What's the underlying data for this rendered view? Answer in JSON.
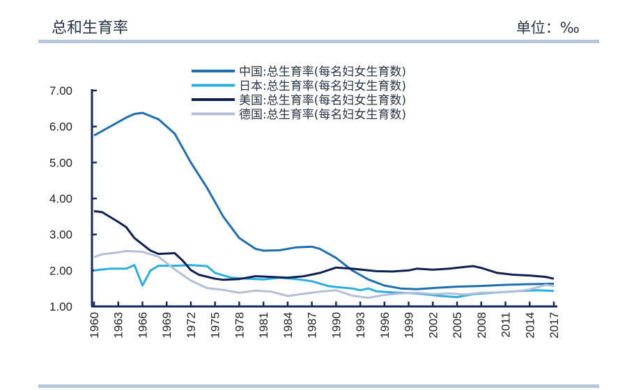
{
  "header": {
    "title": "总和生育率",
    "unit": "单位：‰"
  },
  "chart_data": {
    "type": "line",
    "title": "总和生育率",
    "xlabel": "",
    "ylabel": "",
    "ylim": [
      1,
      7
    ],
    "xlim": [
      1960,
      2017
    ],
    "yticks": [
      "1.00",
      "2.00",
      "3.00",
      "4.00",
      "5.00",
      "6.00",
      "7.00"
    ],
    "xticks": [
      "1960",
      "1963",
      "1966",
      "1969",
      "1972",
      "1975",
      "1978",
      "1981",
      "1984",
      "1987",
      "1990",
      "1993",
      "1996",
      "1999",
      "2002",
      "2005",
      "2008",
      "2011",
      "2014",
      "2017"
    ],
    "grid": false,
    "legend_position": "top",
    "series": [
      {
        "name": "中国:总生育率(每名妇女生育数)",
        "color": "#1f6fad",
        "x": [
          1960,
          1962,
          1964,
          1965,
          1966,
          1968,
          1970,
          1972,
          1974,
          1976,
          1978,
          1980,
          1981,
          1983,
          1985,
          1987,
          1988,
          1990,
          1992,
          1994,
          1996,
          1998,
          2000,
          2002,
          2005,
          2008,
          2011,
          2014,
          2017
        ],
        "y": [
          5.75,
          6.0,
          6.25,
          6.35,
          6.38,
          6.2,
          5.8,
          5.0,
          4.3,
          3.5,
          2.9,
          2.6,
          2.55,
          2.56,
          2.64,
          2.66,
          2.6,
          2.35,
          2.0,
          1.75,
          1.58,
          1.5,
          1.48,
          1.51,
          1.55,
          1.57,
          1.6,
          1.62,
          1.63
        ]
      },
      {
        "name": "日本:总生育率(每名妇女生育数)",
        "color": "#2aaee0",
        "x": [
          1960,
          1962,
          1964,
          1965,
          1966,
          1967,
          1968,
          1970,
          1972,
          1974,
          1975,
          1977,
          1979,
          1981,
          1983,
          1985,
          1987,
          1989,
          1990,
          1992,
          1993,
          1994,
          1995,
          1997,
          2000,
          2003,
          2005,
          2007,
          2010,
          2013,
          2015,
          2017
        ],
        "y": [
          2.0,
          2.05,
          2.05,
          2.15,
          1.58,
          2.0,
          2.13,
          2.13,
          2.15,
          2.12,
          1.93,
          1.8,
          1.77,
          1.75,
          1.8,
          1.76,
          1.7,
          1.57,
          1.54,
          1.5,
          1.45,
          1.5,
          1.42,
          1.39,
          1.36,
          1.29,
          1.26,
          1.34,
          1.39,
          1.43,
          1.45,
          1.43
        ]
      },
      {
        "name": "美国:总生育率(每名妇女生育数)",
        "color": "#0f1f4f",
        "x": [
          1960,
          1961,
          1963,
          1964,
          1965,
          1967,
          1968,
          1970,
          1971,
          1972,
          1973,
          1975,
          1976,
          1978,
          1980,
          1982,
          1984,
          1986,
          1988,
          1990,
          1992,
          1995,
          1997,
          1999,
          2000,
          2002,
          2004,
          2006,
          2007,
          2008,
          2010,
          2012,
          2014,
          2016,
          2017
        ],
        "y": [
          3.65,
          3.62,
          3.35,
          3.2,
          2.9,
          2.55,
          2.46,
          2.48,
          2.27,
          2.01,
          1.88,
          1.77,
          1.74,
          1.76,
          1.84,
          1.82,
          1.8,
          1.84,
          1.93,
          2.08,
          2.05,
          1.98,
          1.97,
          2.0,
          2.05,
          2.02,
          2.05,
          2.1,
          2.12,
          2.07,
          1.93,
          1.88,
          1.86,
          1.82,
          1.77
        ]
      },
      {
        "name": "德国:总生育率(每名妇女生育数)",
        "color": "#b3bfd6",
        "x": [
          1960,
          1961,
          1963,
          1964,
          1966,
          1968,
          1970,
          1972,
          1974,
          1976,
          1978,
          1980,
          1982,
          1984,
          1986,
          1988,
          1990,
          1992,
          1994,
          1996,
          1998,
          2000,
          2002,
          2004,
          2006,
          2008,
          2010,
          2012,
          2014,
          2016,
          2017
        ],
        "y": [
          2.37,
          2.45,
          2.5,
          2.54,
          2.52,
          2.38,
          2.03,
          1.72,
          1.51,
          1.46,
          1.38,
          1.44,
          1.41,
          1.29,
          1.35,
          1.41,
          1.45,
          1.3,
          1.24,
          1.32,
          1.36,
          1.38,
          1.34,
          1.36,
          1.33,
          1.38,
          1.39,
          1.41,
          1.47,
          1.6,
          1.57
        ]
      }
    ]
  }
}
